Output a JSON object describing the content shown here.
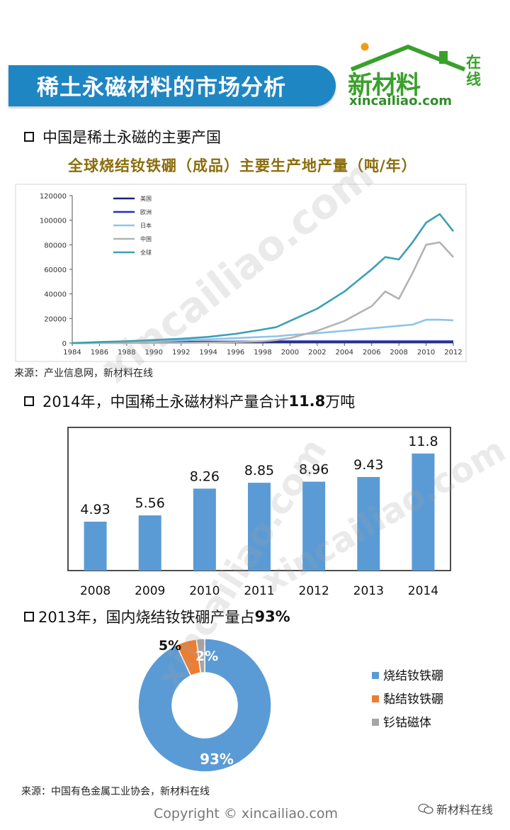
{
  "header": {
    "title": "稀土永磁材料的市场分析",
    "logo_main": "新材料",
    "logo_side": "在线",
    "logo_url": "xincailiao.com"
  },
  "section1": {
    "heading": "中国是稀土永磁的主要产国",
    "chart_title": "全球烧结钕铁硼（成品）主要生产地产量（吨/年）",
    "source": "来源：产业信息网，新材料在线"
  },
  "section2": {
    "heading_prefix": "2014年，中国稀土永磁材料产量合计",
    "heading_bold": "11.8",
    "heading_suffix": " 万吨"
  },
  "section3": {
    "heading_prefix": "2013年，国内烧结钕铁硼产量占",
    "heading_bold": "93%",
    "source": "来源：中国有色金属工业协会，新材料在线"
  },
  "footer": {
    "copyright": "Copyright © xincailiao.com",
    "wechat": "新材料在线"
  },
  "watermark": "xincailiao.com",
  "colors": {
    "banner": "#1f86c4",
    "logo_green": "#3aa02c",
    "bar": "#5b9bd5",
    "pie_blue": "#5b9bd5",
    "pie_orange": "#ed7d31",
    "pie_gray": "#a5a5a5"
  },
  "chart_data": [
    {
      "type": "line",
      "x": [
        1984,
        1986,
        1988,
        1990,
        1992,
        1994,
        1996,
        1998,
        1999,
        2000,
        2002,
        2004,
        2006,
        2007,
        2008,
        2009,
        2010,
        2011,
        2012
      ],
      "xticks": [
        "1984",
        "1986",
        "1988",
        "1990",
        "1992",
        "1994",
        "1996",
        "1998",
        "2000",
        "2002",
        "2004",
        "2006",
        "2008",
        "2010",
        "2012"
      ],
      "yticks": [
        "0",
        "20000",
        "40000",
        "60000",
        "80000",
        "100000",
        "120000"
      ],
      "ylim": [
        0,
        120000
      ],
      "xlim": [
        1984,
        2012
      ],
      "legend_position": "top-left",
      "series": [
        {
          "name": "美国",
          "color": "#1a237e",
          "values": [
            0,
            200,
            400,
            600,
            800,
            900,
            1000,
            1000,
            1000,
            1000,
            1000,
            1000,
            1000,
            1000,
            1000,
            1000,
            1000,
            1000,
            1000
          ]
        },
        {
          "name": "欧洲",
          "color": "#1f2ec4",
          "values": [
            0,
            300,
            500,
            700,
            900,
            1100,
            1200,
            1300,
            1400,
            1400,
            1400,
            1400,
            1400,
            1400,
            1400,
            1400,
            1400,
            1400,
            1400
          ]
        },
        {
          "name": "日本",
          "color": "#8fc4ea",
          "values": [
            0,
            300,
            800,
            1500,
            2200,
            3000,
            4000,
            5000,
            5500,
            6500,
            8000,
            10000,
            12000,
            13000,
            14000,
            15000,
            19000,
            19000,
            18500
          ]
        },
        {
          "name": "中国",
          "color": "#b3b3b3",
          "values": [
            0,
            0,
            0,
            100,
            200,
            400,
            800,
            1500,
            2500,
            4000,
            10000,
            18000,
            30000,
            42000,
            36000,
            57000,
            80000,
            82000,
            70000
          ]
        },
        {
          "name": "全球",
          "color": "#3aa0b4",
          "values": [
            0,
            800,
            1500,
            2500,
            3500,
            5000,
            7500,
            11000,
            13000,
            18000,
            28000,
            42000,
            60000,
            70000,
            68000,
            82000,
            98000,
            105000,
            91000
          ]
        }
      ]
    },
    {
      "type": "bar",
      "categories": [
        "2008",
        "2009",
        "2010",
        "2011",
        "2012",
        "2013",
        "2014"
      ],
      "values": [
        4.93,
        5.56,
        8.26,
        8.85,
        8.96,
        9.43,
        11.8
      ],
      "labels": [
        "4.93",
        "5.56",
        "8.26",
        "8.85",
        "8.96",
        "9.43",
        "11.8"
      ],
      "ylim": [
        0,
        14
      ]
    },
    {
      "type": "pie",
      "donut": true,
      "slices": [
        {
          "label": "烧结钕铁硼",
          "value": 93,
          "text": "93%",
          "color": "#5b9bd5"
        },
        {
          "label": "黏结钕铁硼",
          "value": 5,
          "text": "5%",
          "color": "#ed7d31"
        },
        {
          "label": "钐钴磁体",
          "value": 2,
          "text": "2%",
          "color": "#a5a5a5"
        }
      ],
      "legend_position": "right"
    }
  ]
}
